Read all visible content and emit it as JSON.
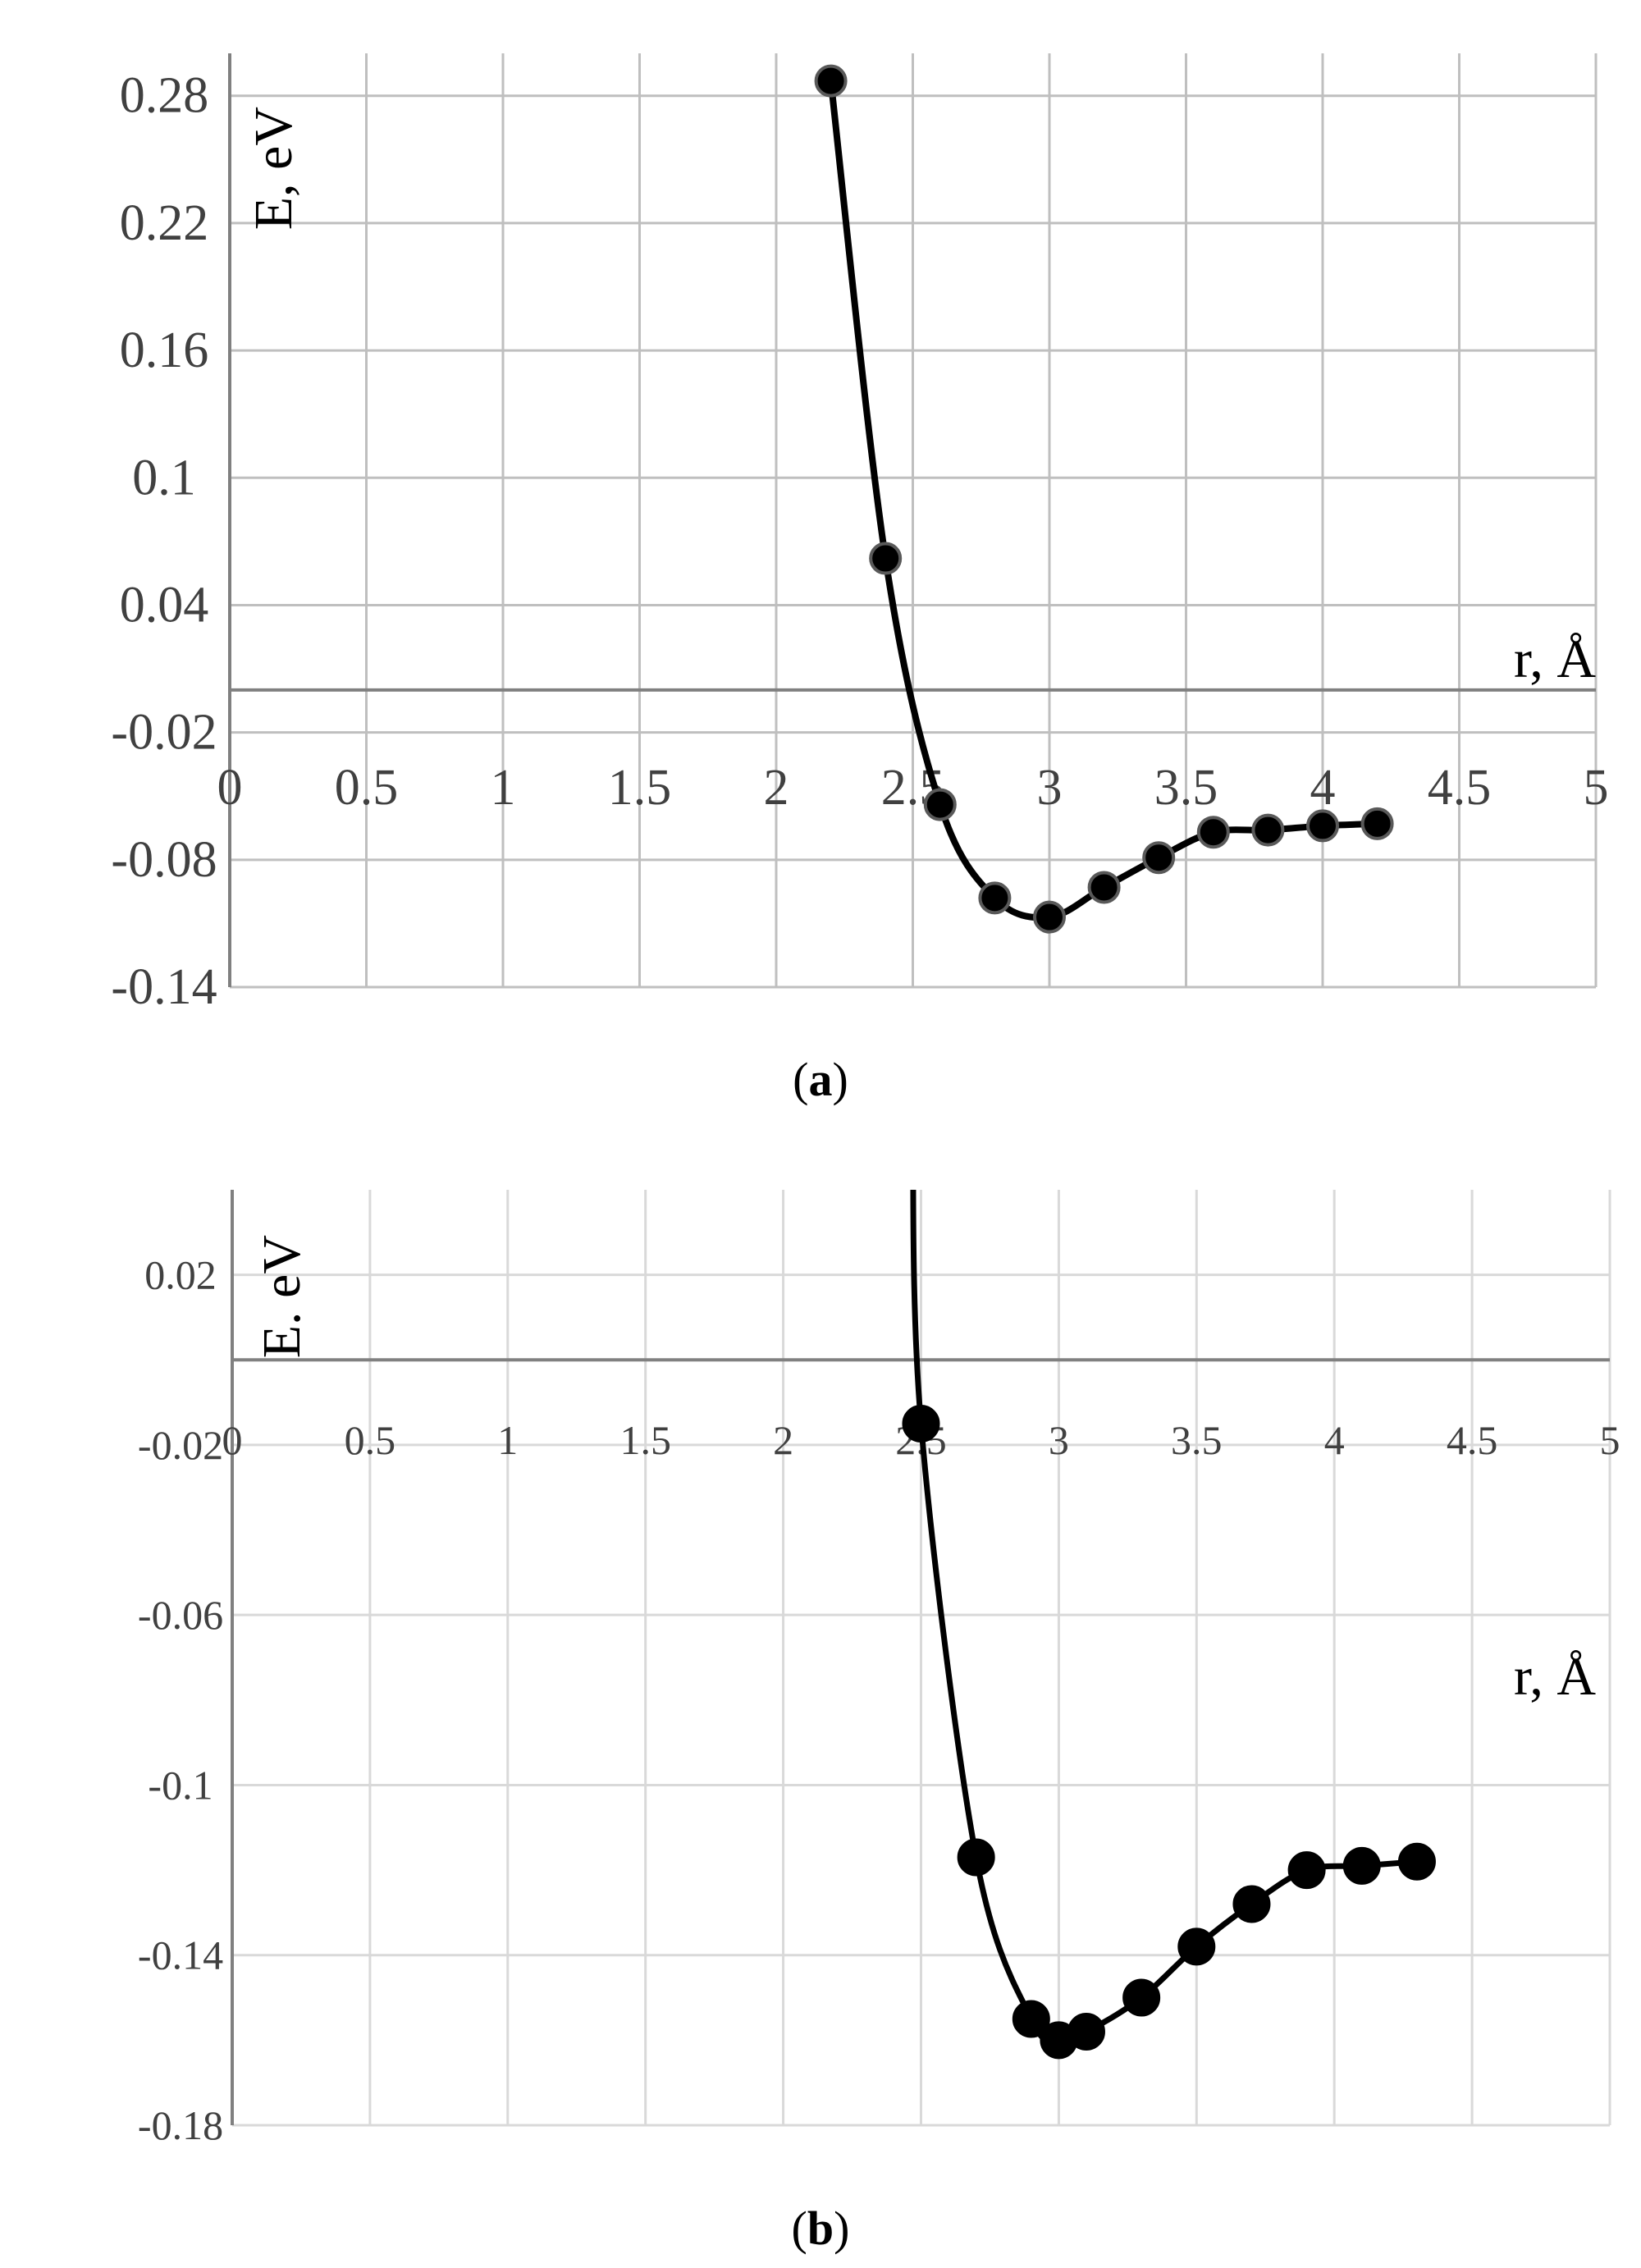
{
  "chart_data": [
    {
      "panel_label": "a",
      "type": "line",
      "xlabel": "r, Å",
      "ylabel": "E, eV",
      "xlim": [
        0,
        5
      ],
      "ylim": [
        -0.14,
        0.3
      ],
      "x_ticks": [
        0,
        0.5,
        1,
        1.5,
        2,
        2.5,
        3,
        3.5,
        4,
        4.5,
        5
      ],
      "x_tick_labels": [
        "0",
        "0.5",
        "1",
        "1.5",
        "2",
        "2.5",
        "3",
        "3.5",
        "4",
        "4.5",
        "5"
      ],
      "y_ticks": [
        -0.14,
        -0.08,
        -0.02,
        0.04,
        0.1,
        0.16,
        0.22,
        0.28
      ],
      "y_tick_labels": [
        "-0.14",
        "-0.08",
        "-0.02",
        "0.04",
        "0.1",
        "0.16",
        "0.22",
        "0.28"
      ],
      "grid": true,
      "series": [
        {
          "x": [
            2.2,
            2.4,
            2.6,
            2.8,
            3.0,
            3.2,
            3.4,
            3.6,
            3.8,
            4.0,
            4.2
          ],
          "y": [
            0.287,
            0.062,
            -0.054,
            -0.098,
            -0.107,
            -0.093,
            -0.079,
            -0.067,
            -0.066,
            -0.064,
            -0.063
          ],
          "color": "#000000",
          "marker": "circle"
        }
      ]
    },
    {
      "panel_label": "b",
      "type": "line",
      "xlabel": "r, Å",
      "ylabel": "E. eV",
      "xlim": [
        0,
        5
      ],
      "ylim": [
        -0.18,
        0.04
      ],
      "x_ticks": [
        0,
        0.5,
        1,
        1.5,
        2,
        2.5,
        3,
        3.5,
        4,
        4.5,
        5
      ],
      "x_tick_labels": [
        "0",
        "0.5",
        "1",
        "1.5",
        "2",
        "2.5",
        "3",
        "3.5",
        "4",
        "4.5",
        "5"
      ],
      "y_ticks": [
        -0.18,
        -0.14,
        -0.1,
        -0.06,
        -0.02,
        0.02
      ],
      "y_tick_labels": [
        "-0.18",
        "-0.14",
        "-0.1",
        "-0.06",
        "-0.02",
        "0.02"
      ],
      "grid": true,
      "series": [
        {
          "x": [
            2.5,
            2.7,
            2.9,
            3.0,
            3.1,
            3.3,
            3.5,
            3.7,
            3.9,
            4.1,
            4.3
          ],
          "y": [
            -0.015,
            -0.117,
            -0.155,
            -0.16,
            -0.158,
            -0.15,
            -0.138,
            -0.128,
            -0.12,
            -0.119,
            -0.118
          ],
          "color": "#000000",
          "marker": "circle"
        }
      ]
    }
  ],
  "captions": [
    {
      "open": "(",
      "letter": "a",
      "close": ")"
    },
    {
      "open": "(",
      "letter": "b",
      "close": ")"
    }
  ],
  "colors": {
    "grid_a": "#bfbfbf",
    "grid_b": "#d9d9d9",
    "axis": "#808080",
    "series": "#000000",
    "marker_stroke_a": "#595959"
  }
}
